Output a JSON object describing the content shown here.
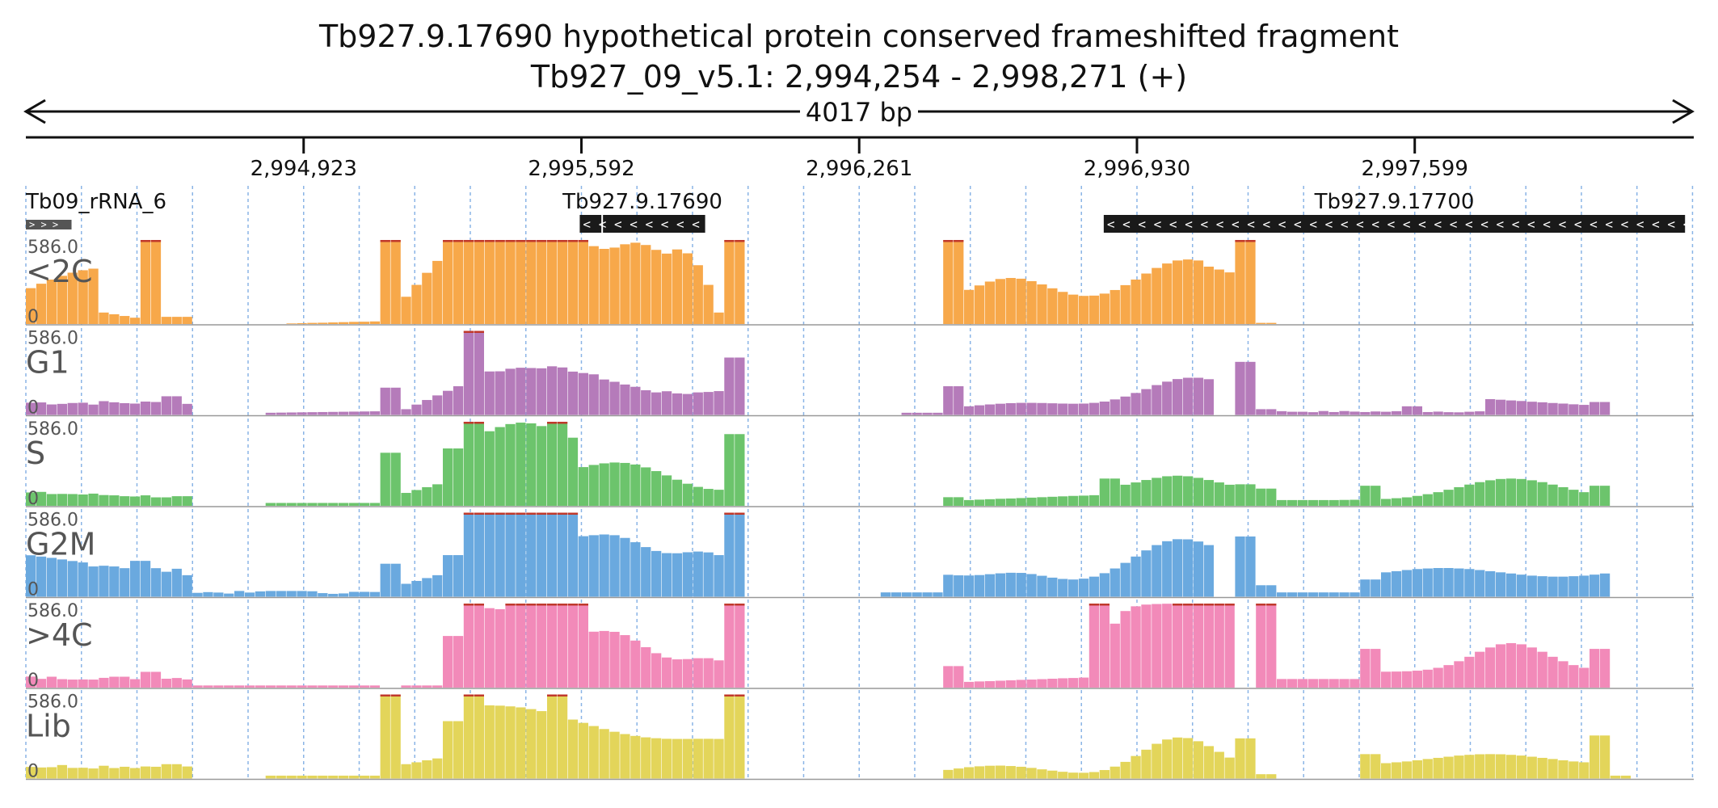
{
  "header": {
    "title_line1": "Tb927.9.17690  hypothetical protein  conserved  frameshifted fragment",
    "title_line2": "Tb927_09_v5.1: 2,994,254 - 2,998,271 (+)",
    "span_label": "4017 bp"
  },
  "chart_data": {
    "type": "bar",
    "region": {
      "chromosome": "Tb927_09_v5.1",
      "start": 2994254,
      "end": 2998271,
      "strand": "+"
    },
    "x_ticks": [
      {
        "pos": 2994923,
        "label": "2,994,923"
      },
      {
        "pos": 2995592,
        "label": "2,995,592"
      },
      {
        "pos": 2996261,
        "label": "2,996,261"
      },
      {
        "pos": 2996930,
        "label": "2,996,930"
      },
      {
        "pos": 2997599,
        "label": "2,997,599"
      }
    ],
    "grid": true,
    "features": [
      {
        "name": "Tb09_rRNA_6",
        "start": 2994254,
        "end": 2994364,
        "strand": "+"
      },
      {
        "name": "Tb927.9.17690",
        "start": 2995588,
        "end": 2995890,
        "strand": "-"
      },
      {
        "name": "Tb927.9.17700",
        "start": 2996850,
        "end": 2998250,
        "strand": "-"
      }
    ],
    "y_max_label": "586.0",
    "y_min_label": "0",
    "ylim": [
      0,
      586
    ],
    "n_bins": 160,
    "series": [
      {
        "name": "<2C",
        "color": "#f7a84a",
        "values": []
      },
      {
        "name": "G1",
        "color": "#b57bba",
        "values": []
      },
      {
        "name": "S",
        "color": "#6cc46c",
        "values": []
      },
      {
        "name": "G2M",
        "color": "#6aa9df",
        "values": []
      },
      {
        "name": ">4C",
        "color": "#f28ab9",
        "values": []
      },
      {
        "name": "Lib",
        "color": "#e3d55a",
        "values": []
      }
    ]
  }
}
